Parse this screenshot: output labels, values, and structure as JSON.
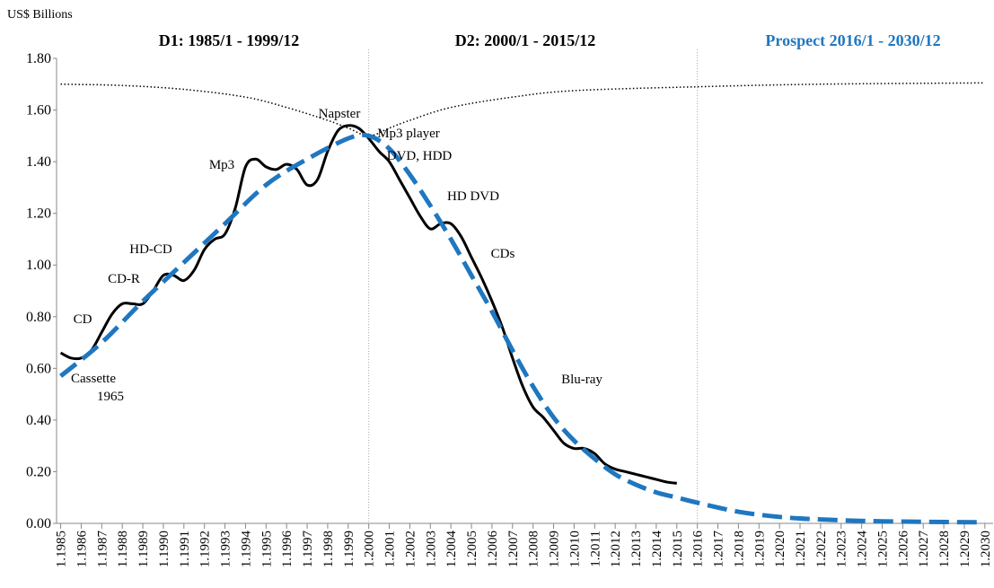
{
  "chart_data": {
    "type": "line",
    "y_label": "US$ Billions",
    "period_titles": [
      "D1: 1985/1 - 1999/12",
      "D2: 2000/1 - 2015/12",
      "Prospect 2016/1 - 2030/12"
    ],
    "period_title_colors": [
      "#000000",
      "#000000",
      "#1f77c0"
    ],
    "dividers": [
      2000,
      2016
    ],
    "annotations": [
      "Cassette",
      "1965",
      "CD",
      "CD-R",
      "HD-CD",
      "Mp3",
      "Napster",
      "Mp3 player",
      "DVD, HDD",
      "HD DVD",
      "CDs",
      "Blu-ray"
    ],
    "xlim": [
      1984.8,
      2030.4
    ],
    "ylim": [
      0,
      1.8
    ],
    "yticks": [
      {
        "value": 0,
        "label": "0.00"
      },
      {
        "value": 0.2,
        "label": "0.20"
      },
      {
        "value": 0.4,
        "label": "0.40"
      },
      {
        "value": 0.6,
        "label": "0.60"
      },
      {
        "value": 0.8,
        "label": "0.80"
      },
      {
        "value": 1.0,
        "label": "1.00"
      },
      {
        "value": 1.2,
        "label": "1.20"
      },
      {
        "value": 1.4,
        "label": "1.40"
      },
      {
        "value": 1.6,
        "label": "1.60"
      },
      {
        "value": 1.8,
        "label": "1.80"
      }
    ],
    "xticks": [
      {
        "value": 1985,
        "label": "1.1985"
      },
      {
        "value": 1986,
        "label": "1.1986"
      },
      {
        "value": 1987,
        "label": "1.1987"
      },
      {
        "value": 1988,
        "label": "1.1988"
      },
      {
        "value": 1989,
        "label": "1.1989"
      },
      {
        "value": 1990,
        "label": "1.1990"
      },
      {
        "value": 1991,
        "label": "1.1991"
      },
      {
        "value": 1992,
        "label": "1.1992"
      },
      {
        "value": 1993,
        "label": "1.1993"
      },
      {
        "value": 1994,
        "label": "1.1994"
      },
      {
        "value": 1995,
        "label": "1.1995"
      },
      {
        "value": 1996,
        "label": "1.1996"
      },
      {
        "value": 1997,
        "label": "1.1997"
      },
      {
        "value": 1998,
        "label": "1.1998"
      },
      {
        "value": 1999,
        "label": "1.1999"
      },
      {
        "value": 2000,
        "label": "1.2000"
      },
      {
        "value": 2001,
        "label": "1.2001"
      },
      {
        "value": 2002,
        "label": "1.2002"
      },
      {
        "value": 2003,
        "label": "1.2003"
      },
      {
        "value": 2004,
        "label": "1.2004"
      },
      {
        "value": 2005,
        "label": "1.2005"
      },
      {
        "value": 2006,
        "label": "1.2006"
      },
      {
        "value": 2007,
        "label": "1.2007"
      },
      {
        "value": 2008,
        "label": "1.2008"
      },
      {
        "value": 2009,
        "label": "1.2009"
      },
      {
        "value": 2010,
        "label": "1.2010"
      },
      {
        "value": 2011,
        "label": "1.2011"
      },
      {
        "value": 2012,
        "label": "1.2012"
      },
      {
        "value": 2013,
        "label": "1.2013"
      },
      {
        "value": 2014,
        "label": "1.2014"
      },
      {
        "value": 2015,
        "label": "1.2015"
      },
      {
        "value": 2016,
        "label": "1.2016"
      },
      {
        "value": 2017,
        "label": "1.2017"
      },
      {
        "value": 2018,
        "label": "1.2018"
      },
      {
        "value": 2019,
        "label": "1.2019"
      },
      {
        "value": 2020,
        "label": "1.2020"
      },
      {
        "value": 2021,
        "label": "1.2021"
      },
      {
        "value": 2022,
        "label": "1.2022"
      },
      {
        "value": 2023,
        "label": "1.2023"
      },
      {
        "value": 2024,
        "label": "1.2024"
      },
      {
        "value": 2025,
        "label": "1.2025"
      },
      {
        "value": 2026,
        "label": "1.2026"
      },
      {
        "value": 2027,
        "label": "1.2027"
      },
      {
        "value": 2028,
        "label": "1.2028"
      },
      {
        "value": 2029,
        "label": "1.2029"
      },
      {
        "value": 2030,
        "label": "1.2030"
      }
    ],
    "series": [
      {
        "color": "#000000",
        "style": "solid",
        "x": [
          1985,
          1985.5,
          1986,
          1986.5,
          1987,
          1987.5,
          1988,
          1988.5,
          1989,
          1989.5,
          1990,
          1990.5,
          1991,
          1991.5,
          1992,
          1992.5,
          1993,
          1993.5,
          1994,
          1994.5,
          1995,
          1995.5,
          1996,
          1996.5,
          1997,
          1997.5,
          1998,
          1998.5,
          1999,
          1999.5,
          2000,
          2000.5,
          2001,
          2001.5,
          2002,
          2002.5,
          2003,
          2003.5,
          2004,
          2004.5,
          2005,
          2005.5,
          2006,
          2006.5,
          2007,
          2007.5,
          2008,
          2008.5,
          2009,
          2009.5,
          2010,
          2010.5,
          2011,
          2011.5,
          2012,
          2012.5,
          2013,
          2013.5,
          2014,
          2014.5,
          2015
        ],
        "values": [
          0.66,
          0.64,
          0.64,
          0.67,
          0.74,
          0.81,
          0.85,
          0.85,
          0.85,
          0.9,
          0.96,
          0.96,
          0.94,
          0.98,
          1.06,
          1.1,
          1.12,
          1.22,
          1.38,
          1.41,
          1.38,
          1.37,
          1.39,
          1.37,
          1.31,
          1.33,
          1.44,
          1.52,
          1.54,
          1.53,
          1.49,
          1.44,
          1.4,
          1.33,
          1.26,
          1.19,
          1.14,
          1.16,
          1.16,
          1.11,
          1.03,
          0.95,
          0.86,
          0.76,
          0.64,
          0.53,
          0.45,
          0.41,
          0.36,
          0.31,
          0.29,
          0.29,
          0.27,
          0.23,
          0.21,
          0.2,
          0.19,
          0.18,
          0.17,
          0.16,
          0.155
        ]
      },
      {
        "color": "#1f77c0",
        "style": "dashed",
        "x": [
          1985,
          1987,
          1989,
          1991,
          1993,
          1995,
          1997,
          1999,
          2000,
          2001,
          2002,
          2003,
          2004,
          2005,
          2006,
          2007,
          2008,
          2009,
          2010,
          2011,
          2012,
          2013,
          2014,
          2015,
          2016,
          2018,
          2020,
          2022,
          2025,
          2030
        ],
        "values": [
          0.57,
          0.7,
          0.86,
          1.01,
          1.16,
          1.31,
          1.41,
          1.49,
          1.5,
          1.45,
          1.35,
          1.23,
          1.1,
          0.96,
          0.82,
          0.67,
          0.53,
          0.41,
          0.32,
          0.25,
          0.19,
          0.15,
          0.12,
          0.1,
          0.08,
          0.045,
          0.025,
          0.015,
          0.008,
          0.004
        ]
      },
      {
        "color": "#000000",
        "style": "dotted",
        "x": [
          1985,
          1988,
          1991,
          1994,
          1996,
          1998,
          1999,
          2000,
          2001,
          2002,
          2004,
          2007,
          2010,
          2016,
          2022,
          2030
        ],
        "values": [
          1.7,
          1.695,
          1.68,
          1.65,
          1.61,
          1.56,
          1.53,
          1.5,
          1.53,
          1.56,
          1.61,
          1.65,
          1.675,
          1.69,
          1.7,
          1.705
        ]
      }
    ]
  }
}
